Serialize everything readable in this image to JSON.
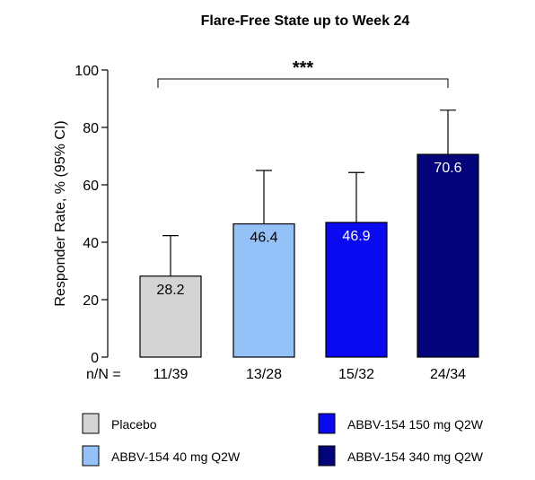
{
  "chart_data": {
    "type": "bar",
    "title": "Flare-Free State up to Week 24",
    "ylabel": "Responder Rate, % (95% CI)",
    "ylim": [
      0,
      100
    ],
    "yticks": [
      0,
      20,
      40,
      60,
      80,
      100
    ],
    "n_label": "n/N =",
    "significance": "***",
    "bars": [
      {
        "name": "Placebo",
        "value": 28.2,
        "ci_upper": 42.3,
        "n": "11/39",
        "color": "#d4d4d4",
        "label_color": "#000000"
      },
      {
        "name": "ABBV-154 40 mg Q2W",
        "value": 46.4,
        "ci_upper": 65.0,
        "n": "13/28",
        "color": "#94c1f7",
        "label_color": "#000000"
      },
      {
        "name": "ABBV-154 150 mg Q2W",
        "value": 46.9,
        "ci_upper": 64.3,
        "n": "15/32",
        "color": "#0a0af0",
        "label_color": "#ffffff"
      },
      {
        "name": "ABBV-154 340 mg Q2W",
        "value": 70.6,
        "ci_upper": 86.0,
        "n": "24/34",
        "color": "#04047a",
        "label_color": "#ffffff"
      }
    ],
    "legend_order": [
      0,
      2,
      1,
      3
    ],
    "legend_placement": "bottom",
    "grid": false
  }
}
